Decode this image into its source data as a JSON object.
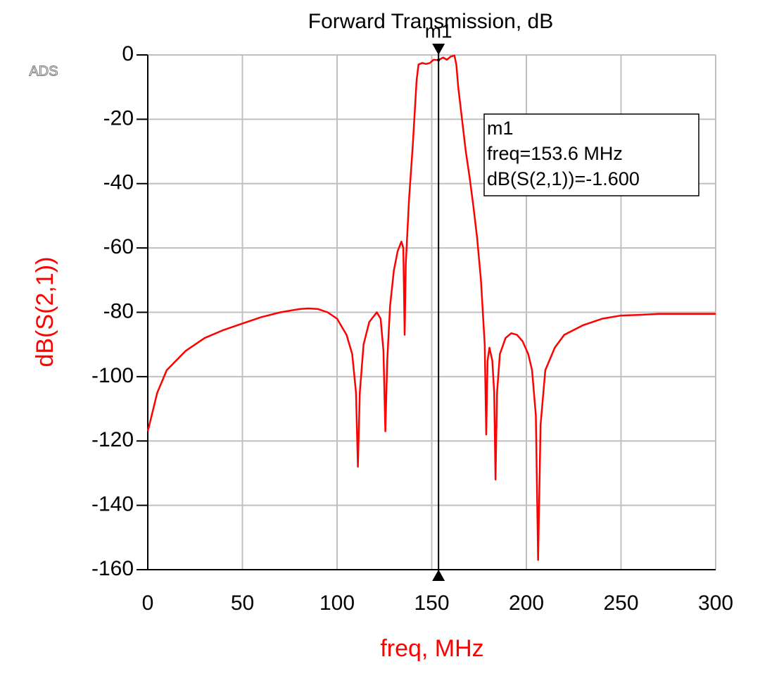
{
  "chart_data": {
    "type": "line",
    "title": "Forward Transmission, dB",
    "logo": "ADS",
    "x_label": "freq, MHz",
    "y_label": "dB(S(2,1))",
    "color": "#ff0000",
    "grid": true,
    "xlim": [
      0,
      300
    ],
    "ylim": [
      -160,
      0
    ],
    "xticks": [
      0,
      50,
      100,
      150,
      200,
      250,
      300
    ],
    "yticks": [
      0,
      -20,
      -40,
      -60,
      -80,
      -100,
      -120,
      -140,
      -160
    ],
    "x": [
      0,
      5,
      10,
      20,
      30,
      40,
      50,
      60,
      70,
      80,
      85,
      90,
      95,
      100,
      105,
      108,
      110,
      111,
      112,
      114,
      117,
      121,
      123,
      124.5,
      125.5,
      126.5,
      128,
      130,
      132,
      134,
      135,
      135.7,
      136.3,
      138,
      140,
      142,
      143,
      145,
      147,
      149,
      151,
      153.6,
      156,
      158,
      160,
      162,
      163,
      164,
      166,
      168,
      170,
      172,
      174,
      176,
      177,
      178,
      178.8,
      179.5,
      180.5,
      182,
      183,
      183.7,
      184.5,
      186,
      189,
      192,
      195,
      198,
      201,
      203,
      205,
      206.2,
      207.5,
      210,
      215,
      220,
      230,
      240,
      250,
      260,
      270,
      280,
      300
    ],
    "values": [
      -117,
      -105,
      -98,
      -92,
      -88,
      -85.5,
      -83.5,
      -81.5,
      -80,
      -79,
      -78.8,
      -79,
      -80,
      -82,
      -87,
      -93,
      -105,
      -128,
      -105,
      -90,
      -83,
      -80,
      -82,
      -92,
      -117,
      -95,
      -78,
      -67,
      -61,
      -58,
      -60,
      -87,
      -65,
      -45,
      -28,
      -8,
      -3,
      -2.5,
      -2.8,
      -2.5,
      -1.5,
      -1.6,
      -0.8,
      -1.5,
      -0.5,
      -0.2,
      -3,
      -10,
      -20,
      -30,
      -38,
      -47,
      -57,
      -70,
      -80,
      -90,
      -118,
      -95,
      -91,
      -95,
      -105,
      -132,
      -105,
      -93,
      -88,
      -86.5,
      -87,
      -89,
      -93,
      -98,
      -112,
      -157,
      -115,
      -98,
      -91,
      -87,
      -84,
      -82,
      -81,
      -80.8,
      -80.5,
      -80.5,
      -80.5
    ],
    "marker": {
      "label": "m1",
      "x": 153.6,
      "y": -1.6,
      "text": [
        "m1",
        "freq=153.6 MHz",
        "dB(S(2,1))=-1.600"
      ]
    }
  }
}
